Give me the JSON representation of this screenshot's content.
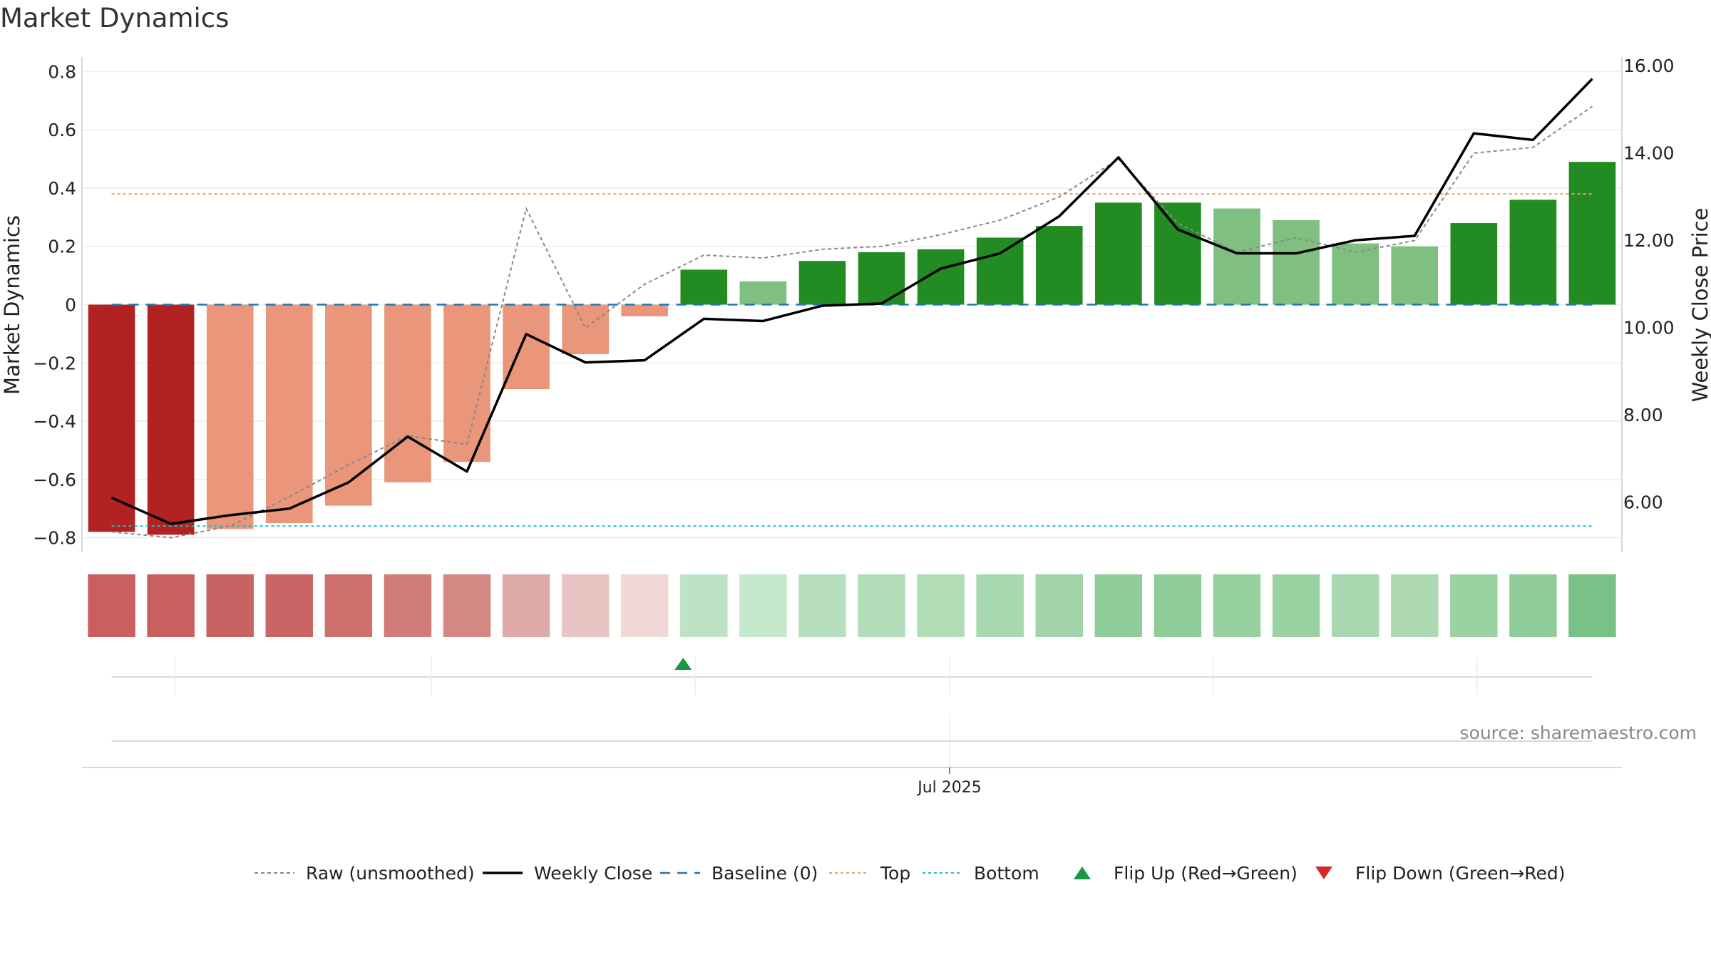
{
  "title": "Market Dynamics",
  "source": "source: sharemaestro.com",
  "chart_data": {
    "type": "bar",
    "title": "Market Dynamics",
    "ylabel": "Market Dynamics",
    "y2label": "Weekly Close Price",
    "ylim": [
      -0.85,
      0.85
    ],
    "y2lim": [
      4.85,
      16.2
    ],
    "yticks": [
      {
        "v": 0.8,
        "label": "0.8"
      },
      {
        "v": 0.6,
        "label": "0.6"
      },
      {
        "v": 0.4,
        "label": "0.4"
      },
      {
        "v": 0.2,
        "label": "0.2"
      },
      {
        "v": 0,
        "label": "0"
      },
      {
        "v": -0.2,
        "label": "−0.2"
      },
      {
        "v": -0.4,
        "label": "−0.4"
      },
      {
        "v": -0.6,
        "label": "−0.6"
      },
      {
        "v": -0.8,
        "label": "−0.8"
      }
    ],
    "y2ticks": [
      {
        "v": 16,
        "label": "16.00"
      },
      {
        "v": 14,
        "label": "14.00"
      },
      {
        "v": 12,
        "label": "12.00"
      },
      {
        "v": 10,
        "label": "10.00"
      },
      {
        "v": 8,
        "label": "8.00"
      },
      {
        "v": 6,
        "label": "6.00"
      }
    ],
    "xtick_label": "Jul 2025",
    "bars": [
      -0.78,
      -0.79,
      -0.77,
      -0.75,
      -0.69,
      -0.61,
      -0.54,
      -0.29,
      -0.17,
      -0.04,
      0.12,
      0.08,
      0.15,
      0.18,
      0.19,
      0.23,
      0.27,
      0.35,
      0.35,
      0.33,
      0.29,
      0.21,
      0.2,
      0.28,
      0.36,
      0.49
    ],
    "bar_colors": [
      "#b22222",
      "#b22222",
      "#e9967a",
      "#e9967a",
      "#e9967a",
      "#e9967a",
      "#e9967a",
      "#e9967a",
      "#e9967a",
      "#e9967a",
      "#228b22",
      "#7fbf7f",
      "#228b22",
      "#228b22",
      "#228b22",
      "#228b22",
      "#228b22",
      "#228b22",
      "#228b22",
      "#7fbf7f",
      "#7fbf7f",
      "#7fbf7f",
      "#7fbf7f",
      "#228b22",
      "#228b22",
      "#228b22"
    ],
    "raw_series": [
      -0.78,
      -0.8,
      -0.76,
      -0.66,
      -0.55,
      -0.45,
      -0.48,
      0.33,
      -0.08,
      0.07,
      0.17,
      0.16,
      0.19,
      0.2,
      0.24,
      0.29,
      0.37,
      0.5,
      0.28,
      0.18,
      0.23,
      0.18,
      0.22,
      0.52,
      0.54,
      0.68
    ],
    "close_series": [
      6.1,
      5.5,
      5.7,
      5.85,
      6.45,
      7.5,
      6.7,
      9.85,
      9.2,
      9.25,
      10.2,
      10.15,
      10.5,
      10.55,
      11.35,
      11.7,
      12.55,
      13.9,
      12.25,
      11.7,
      11.7,
      12.0,
      12.1,
      14.45,
      14.3,
      15.7
    ],
    "baseline": 0,
    "top": 0.38,
    "bottom": -0.76,
    "heat_colors": [
      "#c95f5f",
      "#c95f5f",
      "#c96363",
      "#cb6565",
      "#cd6f6b",
      "#d07c78",
      "#d48883",
      "#deaba8",
      "#e8c4c2",
      "#f0d8d6",
      "#bde3c4",
      "#c6e8cc",
      "#b7dfbd",
      "#b2ddb8",
      "#b0dcb6",
      "#a8d8af",
      "#a0d4a8",
      "#8ecd98",
      "#8ecd98",
      "#98d1a0",
      "#9bd2a2",
      "#a8d8af",
      "#acd9b2",
      "#9bd2a2",
      "#8ecd98",
      "#78c288"
    ],
    "flip_up_index": 10,
    "colors": {
      "raw": "#888888",
      "close": "#000000",
      "baseline": "#1f77b4",
      "top": "#f0a060",
      "bottom": "#17becf",
      "flip_up": "#1a9641",
      "flip_down": "#d62728"
    },
    "legend": [
      {
        "key": "raw",
        "label": "Raw (unsmoothed)"
      },
      {
        "key": "close",
        "label": "Weekly Close"
      },
      {
        "key": "baseline",
        "label": "Baseline (0)"
      },
      {
        "key": "top",
        "label": "Top"
      },
      {
        "key": "bottom",
        "label": "Bottom"
      },
      {
        "key": "flip_up",
        "label": "Flip Up (Red→Green)"
      },
      {
        "key": "flip_down",
        "label": "Flip Down (Green→Red)"
      }
    ],
    "legend_position": "bottom"
  }
}
